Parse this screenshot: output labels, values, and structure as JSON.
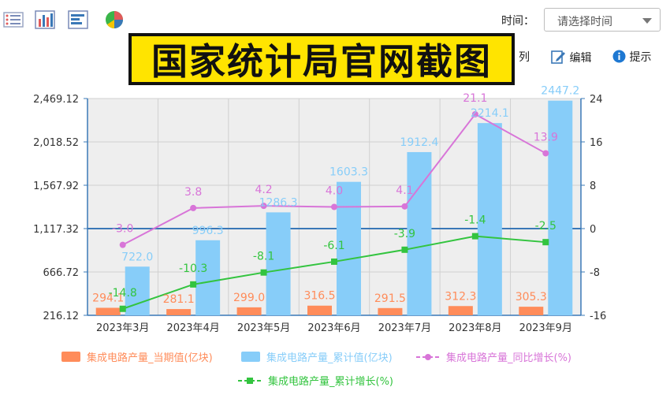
{
  "toolbar": {
    "time_label": "时间：",
    "time_placeholder": "请选择时间",
    "icons": [
      "list-icon",
      "bar-chart-icon",
      "horizontal-bar-icon",
      "pie-chart-icon"
    ]
  },
  "subbar": {
    "column_label": "列",
    "edit_label": "编辑",
    "hint_label": "提示"
  },
  "overlay": {
    "text": "国家统计局官网截图"
  },
  "colors": {
    "current_bar": "#ff8c5a",
    "cumulative_bar": "#87cdf9",
    "yoy_line": "#d875d8",
    "cum_growth_line": "#33c43f",
    "plot_bg": "#eeeeee",
    "axis": "#3a78b7"
  },
  "chart_data": {
    "type": "bar",
    "categories": [
      "2023年3月",
      "2023年4月",
      "2023年5月",
      "2023年6月",
      "2023年7月",
      "2023年8月",
      "2023年9月"
    ],
    "left_axis": {
      "ticks": [
        "216.12",
        "666.72",
        "1,117.32",
        "1,567.92",
        "2,018.52",
        "2,469.12"
      ],
      "ylim": [
        216.12,
        2469.12
      ]
    },
    "right_axis": {
      "ticks": [
        "-16",
        "-8",
        "0",
        "8",
        "16",
        "24"
      ],
      "ylim": [
        -16,
        24
      ]
    },
    "series": [
      {
        "name": "集成电路产量_当期值(亿块)",
        "type": "bar",
        "axis": "left",
        "values": [
          294.1,
          281.1,
          299.0,
          316.5,
          291.5,
          312.3,
          305.3
        ],
        "labels": [
          "294.1",
          "281.1",
          "299.0",
          "316.5",
          "291.5",
          "312.3",
          "305.3"
        ]
      },
      {
        "name": "集成电路产量_累计值(亿块)",
        "type": "bar",
        "axis": "left",
        "values": [
          722.0,
          996.3,
          1286.3,
          1603.3,
          1912.4,
          2214.1,
          2447.2
        ],
        "labels": [
          "722.0",
          "996.3",
          "1286.3",
          "1603.3",
          "1912.4",
          "2214.1",
          "2447.2"
        ]
      },
      {
        "name": "集成电路产量_同比增长(%)",
        "type": "line",
        "axis": "right",
        "values": [
          -3.0,
          3.8,
          4.2,
          4.0,
          4.1,
          21.1,
          13.9
        ],
        "labels": [
          "-3.0",
          "3.8",
          "4.2",
          "4.0",
          "4.1",
          "21.1",
          "13.9"
        ]
      },
      {
        "name": "集成电路产量_累计增长(%)",
        "type": "line",
        "axis": "right",
        "values": [
          -14.8,
          -10.3,
          -8.1,
          -6.1,
          -3.9,
          -1.4,
          -2.5
        ],
        "labels": [
          "-14.8",
          "-10.3",
          "-8.1",
          "-6.1",
          "-3.9",
          "-1.4",
          "-2.5"
        ]
      }
    ],
    "grid": true
  }
}
